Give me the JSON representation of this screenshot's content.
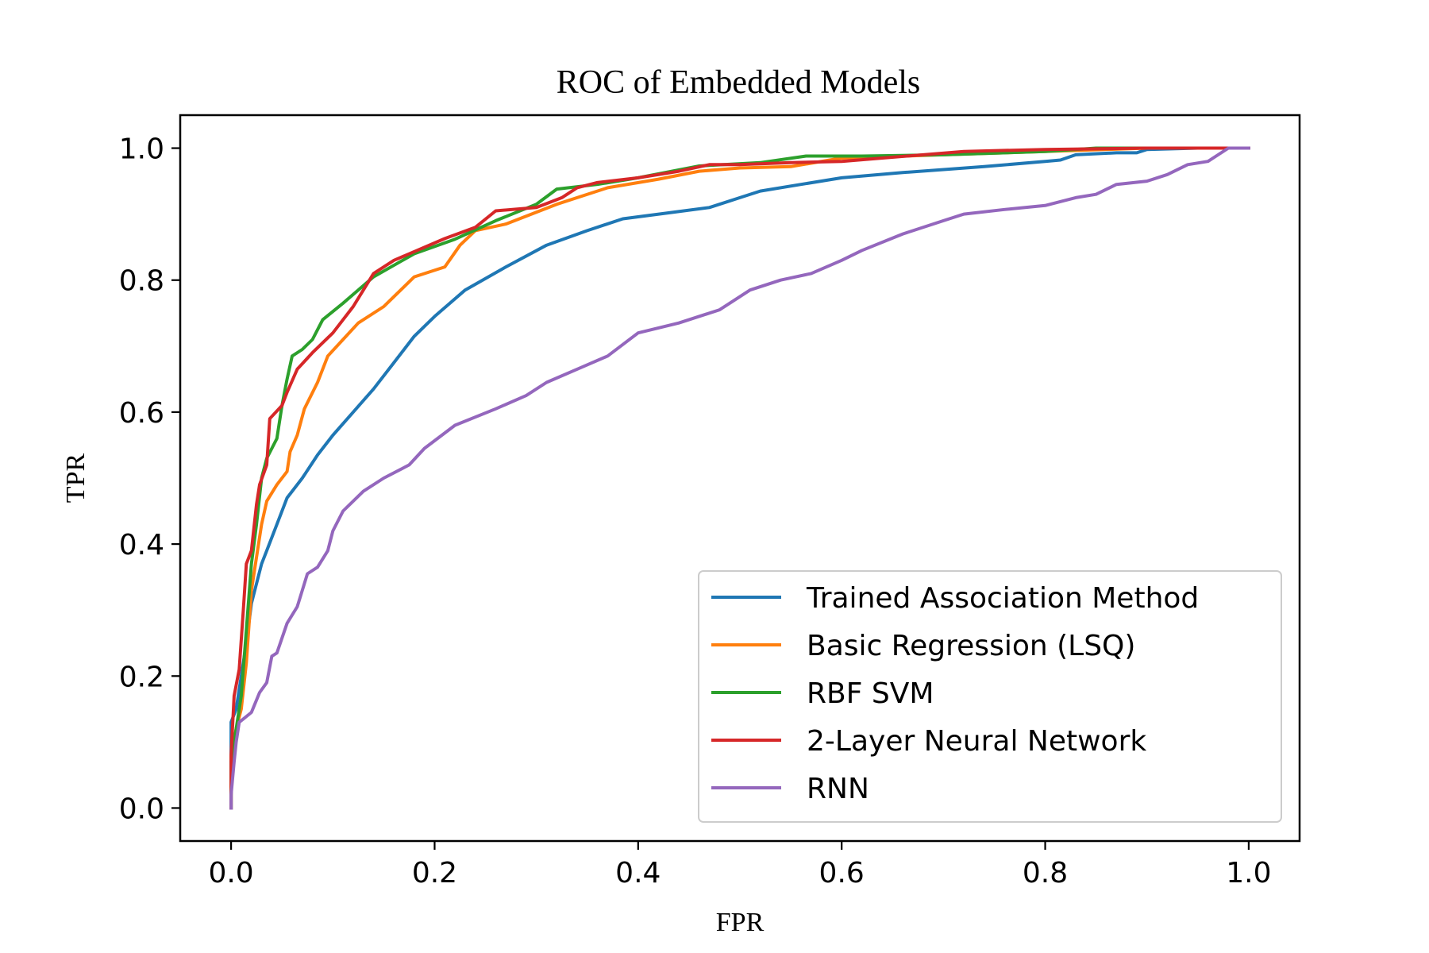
{
  "chart_data": {
    "type": "line",
    "title": "ROC of Embedded Models",
    "xlabel": "FPR",
    "ylabel": "TPR",
    "xlim": [
      -0.05,
      1.05
    ],
    "ylim": [
      -0.05,
      1.05
    ],
    "xticks": [
      0.0,
      0.2,
      0.4,
      0.6,
      0.8,
      1.0
    ],
    "yticks": [
      0.0,
      0.2,
      0.4,
      0.6,
      0.8,
      1.0
    ],
    "xtick_labels": [
      "0.0",
      "0.2",
      "0.4",
      "0.6",
      "0.8",
      "1.0"
    ],
    "ytick_labels": [
      "0.0",
      "0.2",
      "0.4",
      "0.6",
      "0.8",
      "1.0"
    ],
    "grid": false,
    "legend_position": "lower-right",
    "series": [
      {
        "name": "Trained Association Method",
        "color": "#1f77b4",
        "points": [
          [
            0.0,
            0.0
          ],
          [
            0.0,
            0.13
          ],
          [
            0.005,
            0.15
          ],
          [
            0.01,
            0.2
          ],
          [
            0.015,
            0.25
          ],
          [
            0.02,
            0.31
          ],
          [
            0.025,
            0.34
          ],
          [
            0.03,
            0.37
          ],
          [
            0.035,
            0.39
          ],
          [
            0.045,
            0.43
          ],
          [
            0.055,
            0.47
          ],
          [
            0.06,
            0.48
          ],
          [
            0.07,
            0.5
          ],
          [
            0.085,
            0.535
          ],
          [
            0.1,
            0.565
          ],
          [
            0.12,
            0.6
          ],
          [
            0.14,
            0.635
          ],
          [
            0.16,
            0.675
          ],
          [
            0.18,
            0.715
          ],
          [
            0.2,
            0.745
          ],
          [
            0.23,
            0.785
          ],
          [
            0.27,
            0.82
          ],
          [
            0.31,
            0.853
          ],
          [
            0.35,
            0.875
          ],
          [
            0.385,
            0.893
          ],
          [
            0.43,
            0.902
          ],
          [
            0.47,
            0.91
          ],
          [
            0.5,
            0.925
          ],
          [
            0.52,
            0.935
          ],
          [
            0.56,
            0.945
          ],
          [
            0.6,
            0.955
          ],
          [
            0.66,
            0.963
          ],
          [
            0.74,
            0.972
          ],
          [
            0.8,
            0.98
          ],
          [
            0.815,
            0.982
          ],
          [
            0.83,
            0.99
          ],
          [
            0.87,
            0.993
          ],
          [
            0.89,
            0.993
          ],
          [
            0.9,
            0.998
          ],
          [
            0.95,
            1.0
          ],
          [
            1.0,
            1.0
          ]
        ]
      },
      {
        "name": "Basic Regression (LSQ)",
        "color": "#ff7f0e",
        "points": [
          [
            0.0,
            0.0
          ],
          [
            0.0,
            0.08
          ],
          [
            0.005,
            0.12
          ],
          [
            0.01,
            0.15
          ],
          [
            0.015,
            0.22
          ],
          [
            0.02,
            0.33
          ],
          [
            0.025,
            0.38
          ],
          [
            0.03,
            0.43
          ],
          [
            0.035,
            0.465
          ],
          [
            0.045,
            0.49
          ],
          [
            0.055,
            0.51
          ],
          [
            0.058,
            0.54
          ],
          [
            0.065,
            0.565
          ],
          [
            0.072,
            0.605
          ],
          [
            0.085,
            0.645
          ],
          [
            0.095,
            0.685
          ],
          [
            0.11,
            0.71
          ],
          [
            0.125,
            0.735
          ],
          [
            0.15,
            0.76
          ],
          [
            0.18,
            0.805
          ],
          [
            0.21,
            0.82
          ],
          [
            0.225,
            0.853
          ],
          [
            0.24,
            0.875
          ],
          [
            0.27,
            0.885
          ],
          [
            0.32,
            0.915
          ],
          [
            0.37,
            0.94
          ],
          [
            0.42,
            0.953
          ],
          [
            0.46,
            0.965
          ],
          [
            0.5,
            0.97
          ],
          [
            0.55,
            0.972
          ],
          [
            0.6,
            0.985
          ],
          [
            0.7,
            0.99
          ],
          [
            0.8,
            0.995
          ],
          [
            0.9,
            1.0
          ],
          [
            1.0,
            1.0
          ]
        ]
      },
      {
        "name": "RBF SVM",
        "color": "#2ca02c",
        "points": [
          [
            0.0,
            0.0
          ],
          [
            0.0,
            0.07
          ],
          [
            0.005,
            0.12
          ],
          [
            0.01,
            0.17
          ],
          [
            0.015,
            0.27
          ],
          [
            0.02,
            0.37
          ],
          [
            0.025,
            0.43
          ],
          [
            0.03,
            0.5
          ],
          [
            0.035,
            0.53
          ],
          [
            0.045,
            0.56
          ],
          [
            0.05,
            0.61
          ],
          [
            0.055,
            0.65
          ],
          [
            0.06,
            0.685
          ],
          [
            0.07,
            0.695
          ],
          [
            0.08,
            0.71
          ],
          [
            0.09,
            0.74
          ],
          [
            0.11,
            0.765
          ],
          [
            0.14,
            0.805
          ],
          [
            0.18,
            0.84
          ],
          [
            0.22,
            0.862
          ],
          [
            0.26,
            0.89
          ],
          [
            0.3,
            0.915
          ],
          [
            0.32,
            0.938
          ],
          [
            0.36,
            0.945
          ],
          [
            0.4,
            0.955
          ],
          [
            0.46,
            0.973
          ],
          [
            0.52,
            0.978
          ],
          [
            0.565,
            0.988
          ],
          [
            0.62,
            0.988
          ],
          [
            0.7,
            0.99
          ],
          [
            0.8,
            0.995
          ],
          [
            0.85,
            1.0
          ],
          [
            1.0,
            1.0
          ]
        ]
      },
      {
        "name": "2-Layer Neural Network",
        "color": "#d62728",
        "points": [
          [
            0.0,
            0.0
          ],
          [
            0.0,
            0.08
          ],
          [
            0.003,
            0.17
          ],
          [
            0.008,
            0.21
          ],
          [
            0.012,
            0.3
          ],
          [
            0.015,
            0.37
          ],
          [
            0.02,
            0.39
          ],
          [
            0.025,
            0.46
          ],
          [
            0.028,
            0.49
          ],
          [
            0.035,
            0.52
          ],
          [
            0.038,
            0.59
          ],
          [
            0.05,
            0.61
          ],
          [
            0.055,
            0.63
          ],
          [
            0.065,
            0.665
          ],
          [
            0.08,
            0.69
          ],
          [
            0.1,
            0.72
          ],
          [
            0.12,
            0.76
          ],
          [
            0.14,
            0.81
          ],
          [
            0.16,
            0.83
          ],
          [
            0.21,
            0.863
          ],
          [
            0.24,
            0.88
          ],
          [
            0.26,
            0.905
          ],
          [
            0.3,
            0.91
          ],
          [
            0.325,
            0.925
          ],
          [
            0.34,
            0.94
          ],
          [
            0.36,
            0.948
          ],
          [
            0.4,
            0.955
          ],
          [
            0.44,
            0.965
          ],
          [
            0.47,
            0.975
          ],
          [
            0.5,
            0.975
          ],
          [
            0.55,
            0.978
          ],
          [
            0.6,
            0.98
          ],
          [
            0.64,
            0.985
          ],
          [
            0.72,
            0.995
          ],
          [
            0.8,
            0.998
          ],
          [
            0.9,
            1.0
          ],
          [
            1.0,
            1.0
          ]
        ]
      },
      {
        "name": "RNN",
        "color": "#9467bd",
        "points": [
          [
            0.0,
            0.0
          ],
          [
            0.0,
            0.02
          ],
          [
            0.003,
            0.07
          ],
          [
            0.005,
            0.1
          ],
          [
            0.008,
            0.13
          ],
          [
            0.012,
            0.135
          ],
          [
            0.02,
            0.145
          ],
          [
            0.028,
            0.175
          ],
          [
            0.035,
            0.19
          ],
          [
            0.04,
            0.23
          ],
          [
            0.045,
            0.235
          ],
          [
            0.055,
            0.28
          ],
          [
            0.065,
            0.305
          ],
          [
            0.07,
            0.33
          ],
          [
            0.075,
            0.355
          ],
          [
            0.085,
            0.365
          ],
          [
            0.095,
            0.39
          ],
          [
            0.1,
            0.42
          ],
          [
            0.11,
            0.45
          ],
          [
            0.13,
            0.48
          ],
          [
            0.15,
            0.5
          ],
          [
            0.175,
            0.52
          ],
          [
            0.19,
            0.545
          ],
          [
            0.22,
            0.58
          ],
          [
            0.26,
            0.605
          ],
          [
            0.29,
            0.625
          ],
          [
            0.31,
            0.645
          ],
          [
            0.34,
            0.665
          ],
          [
            0.37,
            0.685
          ],
          [
            0.4,
            0.72
          ],
          [
            0.44,
            0.735
          ],
          [
            0.48,
            0.755
          ],
          [
            0.51,
            0.785
          ],
          [
            0.54,
            0.8
          ],
          [
            0.57,
            0.81
          ],
          [
            0.6,
            0.83
          ],
          [
            0.62,
            0.845
          ],
          [
            0.66,
            0.87
          ],
          [
            0.7,
            0.89
          ],
          [
            0.72,
            0.9
          ],
          [
            0.76,
            0.907
          ],
          [
            0.8,
            0.913
          ],
          [
            0.83,
            0.925
          ],
          [
            0.85,
            0.93
          ],
          [
            0.87,
            0.945
          ],
          [
            0.9,
            0.95
          ],
          [
            0.92,
            0.96
          ],
          [
            0.94,
            0.975
          ],
          [
            0.96,
            0.98
          ],
          [
            0.98,
            1.0
          ],
          [
            1.0,
            1.0
          ]
        ]
      }
    ]
  }
}
